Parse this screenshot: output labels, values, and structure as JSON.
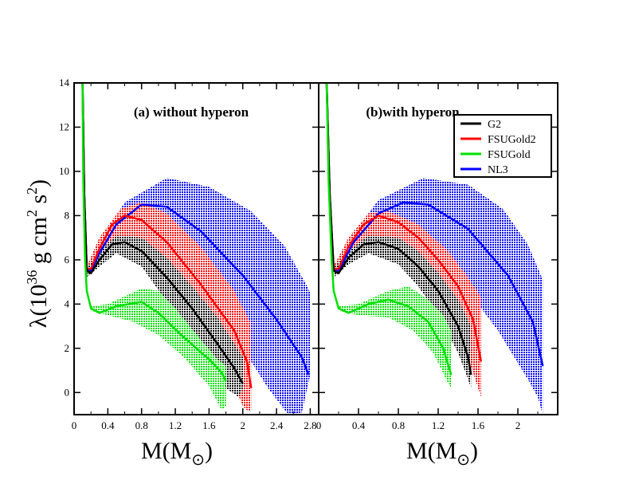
{
  "figure": {
    "ylabel": {
      "main": "λ(10",
      "exp": "36",
      "mid": " g cm",
      "exp2": "2",
      "tail": " s",
      "exp3": "2",
      "close": ")"
    },
    "xlabel": {
      "main": "M(M",
      "sub": "⊙",
      "close": ")"
    }
  },
  "legend": {
    "entries": [
      {
        "label": "G2",
        "color": "#000000"
      },
      {
        "label": "FSUGold2",
        "color": "#ff0000"
      },
      {
        "label": "FSUGold",
        "color": "#00e000"
      },
      {
        "label": "NL3",
        "color": "#0000ff"
      }
    ]
  },
  "chart_data": [
    {
      "type": "area",
      "title": "(a) without hyperon",
      "xlim": [
        0,
        2.9
      ],
      "ylim": [
        -1,
        14
      ],
      "x_ticks": [
        "0",
        "0.4",
        "0.8",
        "1.2",
        "1.6",
        "2",
        "2.4",
        "2.8"
      ],
      "x_tick_values": [
        0,
        0.4,
        0.8,
        1.2,
        1.6,
        2.0,
        2.4,
        2.8
      ],
      "y_ticks": [
        "0",
        "2",
        "4",
        "6",
        "8",
        "10",
        "12",
        "14"
      ],
      "y_tick_values": [
        0,
        2,
        4,
        6,
        8,
        10,
        12,
        14
      ],
      "series": [
        {
          "color": "#0000ff",
          "central": [
            [
              0.1,
              14
            ],
            [
              0.12,
              9
            ],
            [
              0.15,
              5.6
            ],
            [
              0.2,
              5.5
            ],
            [
              0.3,
              6.3
            ],
            [
              0.5,
              7.6
            ],
            [
              0.8,
              8.5
            ],
            [
              1.1,
              8.4
            ],
            [
              1.5,
              7.3
            ],
            [
              2.0,
              5.3
            ],
            [
              2.4,
              3.3
            ],
            [
              2.7,
              1.6
            ],
            [
              2.78,
              0.8
            ]
          ],
          "upper": [
            [
              0.15,
              5.7
            ],
            [
              0.3,
              6.8
            ],
            [
              0.6,
              8.6
            ],
            [
              1.1,
              9.7
            ],
            [
              1.6,
              9.3
            ],
            [
              2.1,
              8.2
            ],
            [
              2.5,
              6.6
            ],
            [
              2.75,
              4.9
            ],
            [
              2.8,
              4.5
            ]
          ],
          "lower": [
            [
              0.15,
              5.3
            ],
            [
              0.3,
              6.0
            ],
            [
              0.6,
              7.2
            ],
            [
              1.0,
              6.8
            ],
            [
              1.5,
              4.8
            ],
            [
              2.0,
              2.0
            ],
            [
              2.3,
              0.2
            ],
            [
              2.5,
              -0.8
            ],
            [
              2.55,
              -1.0
            ],
            [
              2.7,
              -0.9
            ],
            [
              2.8,
              0.8
            ]
          ]
        },
        {
          "color": "#ff0000",
          "central": [
            [
              0.1,
              14
            ],
            [
              0.12,
              9
            ],
            [
              0.15,
              5.6
            ],
            [
              0.2,
              5.6
            ],
            [
              0.3,
              6.5
            ],
            [
              0.45,
              7.6
            ],
            [
              0.6,
              8.0
            ],
            [
              0.8,
              7.8
            ],
            [
              1.1,
              6.8
            ],
            [
              1.5,
              4.9
            ],
            [
              1.9,
              2.8
            ],
            [
              2.05,
              1.4
            ],
            [
              2.1,
              0.2
            ]
          ],
          "upper": [
            [
              0.15,
              5.7
            ],
            [
              0.3,
              7.0
            ],
            [
              0.55,
              8.3
            ],
            [
              0.8,
              8.6
            ],
            [
              1.1,
              8.1
            ],
            [
              1.5,
              6.6
            ],
            [
              1.9,
              4.6
            ],
            [
              2.1,
              3.1
            ]
          ],
          "lower": [
            [
              0.15,
              5.3
            ],
            [
              0.3,
              6.0
            ],
            [
              0.5,
              7.0
            ],
            [
              0.8,
              6.6
            ],
            [
              1.2,
              4.7
            ],
            [
              1.6,
              2.3
            ],
            [
              1.9,
              0.3
            ],
            [
              2.0,
              -0.6
            ],
            [
              2.05,
              -0.8
            ],
            [
              2.1,
              -0.8
            ]
          ]
        },
        {
          "color": "#000000",
          "central": [
            [
              0.1,
              14
            ],
            [
              0.12,
              9
            ],
            [
              0.15,
              5.5
            ],
            [
              0.2,
              5.4
            ],
            [
              0.3,
              6.0
            ],
            [
              0.45,
              6.7
            ],
            [
              0.6,
              6.8
            ],
            [
              0.8,
              6.4
            ],
            [
              1.1,
              5.2
            ],
            [
              1.4,
              3.8
            ],
            [
              1.7,
              2.2
            ],
            [
              1.9,
              1.1
            ],
            [
              2.0,
              0.4
            ]
          ],
          "upper": [
            [
              0.15,
              5.6
            ],
            [
              0.3,
              6.4
            ],
            [
              0.5,
              7.1
            ],
            [
              0.8,
              7.0
            ],
            [
              1.1,
              6.1
            ],
            [
              1.4,
              4.8
            ],
            [
              1.7,
              3.4
            ],
            [
              1.9,
              2.2
            ],
            [
              2.0,
              1.6
            ]
          ],
          "lower": [
            [
              0.15,
              5.2
            ],
            [
              0.3,
              5.7
            ],
            [
              0.5,
              6.3
            ],
            [
              0.8,
              5.7
            ],
            [
              1.1,
              4.1
            ],
            [
              1.4,
              2.5
            ],
            [
              1.6,
              1.2
            ],
            [
              1.8,
              0.2
            ],
            [
              1.95,
              -0.2
            ],
            [
              2.0,
              0.2
            ]
          ]
        },
        {
          "color": "#00e000",
          "central": [
            [
              0.1,
              14
            ],
            [
              0.11,
              9.5
            ],
            [
              0.13,
              6
            ],
            [
              0.15,
              4.6
            ],
            [
              0.2,
              3.8
            ],
            [
              0.3,
              3.6
            ],
            [
              0.5,
              3.9
            ],
            [
              0.8,
              4.1
            ],
            [
              1.0,
              3.6
            ],
            [
              1.3,
              2.5
            ],
            [
              1.6,
              1.5
            ],
            [
              1.75,
              0.9
            ],
            [
              1.8,
              0.5
            ]
          ],
          "upper": [
            [
              0.2,
              3.9
            ],
            [
              0.4,
              4.0
            ],
            [
              0.8,
              4.7
            ],
            [
              1.0,
              4.6
            ],
            [
              1.2,
              3.8
            ],
            [
              1.5,
              2.4
            ],
            [
              1.7,
              1.5
            ],
            [
              1.8,
              1.2
            ]
          ],
          "lower": [
            [
              0.2,
              3.7
            ],
            [
              0.4,
              3.5
            ],
            [
              0.7,
              3.2
            ],
            [
              1.0,
              2.6
            ],
            [
              1.3,
              1.6
            ],
            [
              1.6,
              0.3
            ],
            [
              1.75,
              -0.8
            ],
            [
              1.8,
              -0.6
            ]
          ]
        }
      ]
    },
    {
      "type": "area",
      "title": "(b)with hyperon",
      "xlim": [
        0,
        2.4
      ],
      "ylim": [
        -1,
        14
      ],
      "x_ticks": [
        "0",
        "0.4",
        "0.8",
        "1.2",
        "1.6",
        "2"
      ],
      "x_tick_values": [
        0,
        0.4,
        0.8,
        1.2,
        1.6,
        2.0
      ],
      "y_ticks": [
        "0",
        "2",
        "4",
        "6",
        "8",
        "10",
        "12",
        "14"
      ],
      "y_tick_values": [
        0,
        2,
        4,
        6,
        8,
        10,
        12,
        14
      ],
      "series": [
        {
          "color": "#0000ff",
          "central": [
            [
              0.08,
              14
            ],
            [
              0.11,
              9
            ],
            [
              0.15,
              5.6
            ],
            [
              0.2,
              5.5
            ],
            [
              0.35,
              6.8
            ],
            [
              0.6,
              8.1
            ],
            [
              0.85,
              8.6
            ],
            [
              1.1,
              8.5
            ],
            [
              1.5,
              7.4
            ],
            [
              1.9,
              5.3
            ],
            [
              2.15,
              3.2
            ],
            [
              2.25,
              1.2
            ]
          ],
          "upper": [
            [
              0.15,
              5.7
            ],
            [
              0.3,
              6.9
            ],
            [
              0.6,
              8.7
            ],
            [
              1.05,
              9.7
            ],
            [
              1.5,
              9.4
            ],
            [
              1.85,
              8.3
            ],
            [
              2.1,
              6.7
            ],
            [
              2.25,
              5.1
            ]
          ],
          "lower": [
            [
              0.15,
              5.3
            ],
            [
              0.3,
              6.0
            ],
            [
              0.6,
              7.1
            ],
            [
              1.0,
              6.8
            ],
            [
              1.4,
              5.2
            ],
            [
              1.8,
              2.8
            ],
            [
              2.1,
              0.6
            ],
            [
              2.2,
              -0.2
            ],
            [
              2.25,
              -1.0
            ]
          ]
        },
        {
          "color": "#ff0000",
          "central": [
            [
              0.08,
              14
            ],
            [
              0.11,
              9
            ],
            [
              0.15,
              5.6
            ],
            [
              0.2,
              5.6
            ],
            [
              0.3,
              6.6
            ],
            [
              0.45,
              7.6
            ],
            [
              0.6,
              8.0
            ],
            [
              0.8,
              7.7
            ],
            [
              1.0,
              7.0
            ],
            [
              1.2,
              6.0
            ],
            [
              1.4,
              4.8
            ],
            [
              1.55,
              3.3
            ],
            [
              1.63,
              1.4
            ]
          ],
          "upper": [
            [
              0.15,
              5.7
            ],
            [
              0.3,
              7.0
            ],
            [
              0.5,
              8.1
            ],
            [
              0.7,
              8.2
            ],
            [
              1.0,
              7.6
            ],
            [
              1.3,
              6.4
            ],
            [
              1.5,
              5.2
            ],
            [
              1.63,
              4.3
            ]
          ],
          "lower": [
            [
              0.15,
              5.3
            ],
            [
              0.3,
              6.0
            ],
            [
              0.5,
              7.0
            ],
            [
              0.8,
              6.6
            ],
            [
              1.1,
              5.0
            ],
            [
              1.35,
              3.2
            ],
            [
              1.5,
              1.6
            ],
            [
              1.6,
              0.2
            ],
            [
              1.63,
              -0.2
            ]
          ]
        },
        {
          "color": "#000000",
          "central": [
            [
              0.08,
              14
            ],
            [
              0.11,
              9
            ],
            [
              0.15,
              5.5
            ],
            [
              0.2,
              5.4
            ],
            [
              0.3,
              6.1
            ],
            [
              0.45,
              6.7
            ],
            [
              0.6,
              6.8
            ],
            [
              0.8,
              6.5
            ],
            [
              1.0,
              5.7
            ],
            [
              1.2,
              4.6
            ],
            [
              1.4,
              3.0
            ],
            [
              1.5,
              1.6
            ],
            [
              1.53,
              0.8
            ]
          ],
          "upper": [
            [
              0.15,
              5.6
            ],
            [
              0.3,
              6.4
            ],
            [
              0.5,
              7.1
            ],
            [
              0.8,
              7.0
            ],
            [
              1.0,
              6.4
            ],
            [
              1.2,
              5.4
            ],
            [
              1.4,
              4.2
            ],
            [
              1.53,
              3.0
            ]
          ],
          "lower": [
            [
              0.15,
              5.2
            ],
            [
              0.3,
              5.8
            ],
            [
              0.5,
              6.3
            ],
            [
              0.8,
              5.8
            ],
            [
              1.0,
              4.8
            ],
            [
              1.2,
              3.5
            ],
            [
              1.4,
              1.8
            ],
            [
              1.5,
              0.6
            ],
            [
              1.53,
              0.2
            ]
          ]
        },
        {
          "color": "#00e000",
          "central": [
            [
              0.08,
              14
            ],
            [
              0.1,
              9.5
            ],
            [
              0.13,
              6
            ],
            [
              0.15,
              4.6
            ],
            [
              0.2,
              3.8
            ],
            [
              0.3,
              3.6
            ],
            [
              0.5,
              4.0
            ],
            [
              0.7,
              4.2
            ],
            [
              0.9,
              3.9
            ],
            [
              1.1,
              3.2
            ],
            [
              1.25,
              2.0
            ],
            [
              1.33,
              0.8
            ]
          ],
          "upper": [
            [
              0.2,
              3.9
            ],
            [
              0.4,
              4.0
            ],
            [
              0.7,
              4.6
            ],
            [
              0.9,
              4.8
            ],
            [
              1.1,
              4.2
            ],
            [
              1.25,
              3.5
            ],
            [
              1.33,
              2.8
            ]
          ],
          "lower": [
            [
              0.2,
              3.7
            ],
            [
              0.4,
              3.5
            ],
            [
              0.7,
              3.4
            ],
            [
              0.95,
              2.8
            ],
            [
              1.15,
              1.8
            ],
            [
              1.28,
              0.6
            ],
            [
              1.33,
              0.2
            ]
          ]
        }
      ]
    }
  ]
}
